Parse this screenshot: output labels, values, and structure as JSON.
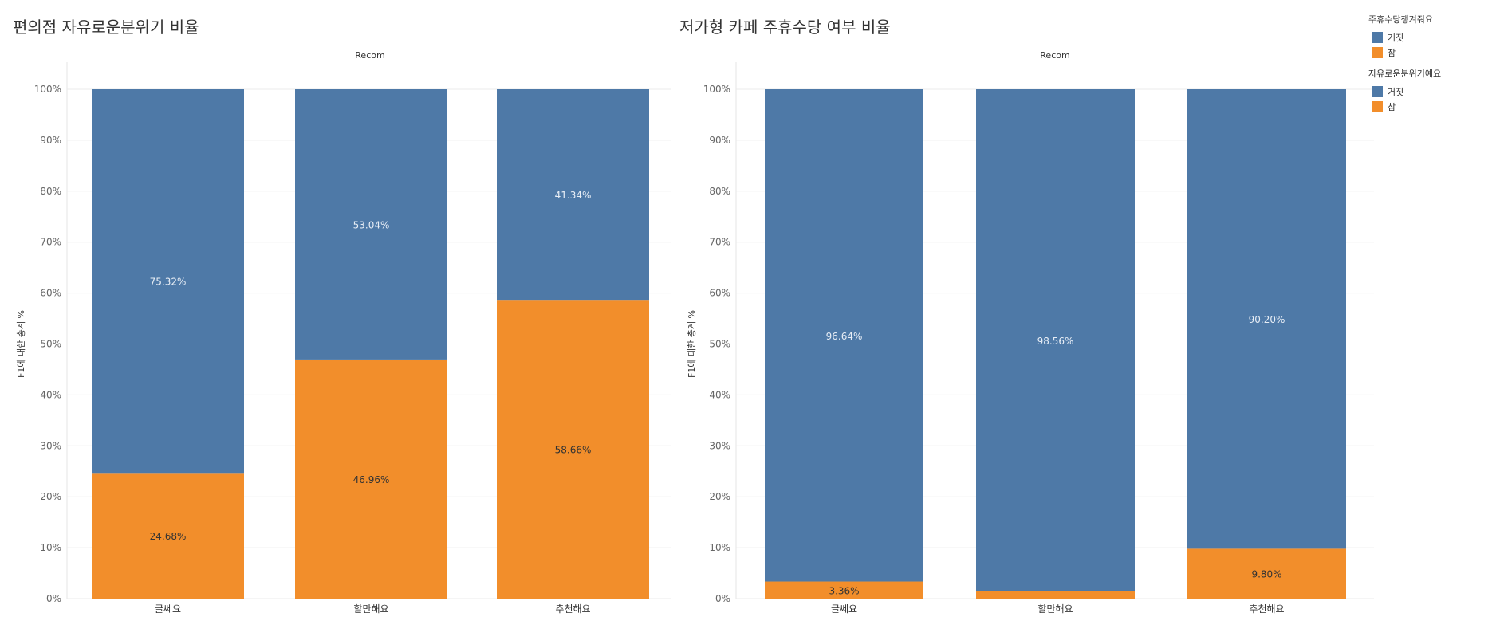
{
  "colors": {
    "blue": "#4e79a7",
    "orange": "#f28e2b"
  },
  "chart_data": [
    {
      "type": "bar",
      "stacked": true,
      "title": "편의점 자유로운분위기 비율",
      "column_header": "Recom",
      "ylabel": "F1에 대한 총계 %",
      "ylim": [
        0,
        100
      ],
      "yticks": [
        "0%",
        "10%",
        "20%",
        "30%",
        "40%",
        "50%",
        "60%",
        "70%",
        "80%",
        "90%",
        "100%"
      ],
      "categories": [
        "글쎄요",
        "할만해요",
        "추천해요"
      ],
      "series": [
        {
          "name": "참",
          "color": "#f28e2b",
          "values": [
            24.68,
            46.96,
            58.66
          ],
          "labels": [
            "24.68%",
            "46.96%",
            "58.66%"
          ]
        },
        {
          "name": "거짓",
          "color": "#4e79a7",
          "values": [
            75.32,
            53.04,
            41.34
          ],
          "labels": [
            "75.32%",
            "53.04%",
            "41.34%"
          ]
        }
      ]
    },
    {
      "type": "bar",
      "stacked": true,
      "title": "저가형 카페 주휴수당 여부 비율",
      "column_header": "Recom",
      "ylabel": "F1에 대한 총계 %",
      "ylim": [
        0,
        100
      ],
      "yticks": [
        "0%",
        "10%",
        "20%",
        "30%",
        "40%",
        "50%",
        "60%",
        "70%",
        "80%",
        "90%",
        "100%"
      ],
      "categories": [
        "글쎄요",
        "할만해요",
        "추천해요"
      ],
      "series": [
        {
          "name": "참",
          "color": "#f28e2b",
          "values": [
            3.36,
            1.44,
            9.8
          ],
          "labels": [
            "3.36%",
            "",
            "9.80%"
          ]
        },
        {
          "name": "거짓",
          "color": "#4e79a7",
          "values": [
            96.64,
            98.56,
            90.2
          ],
          "labels": [
            "96.64%",
            "98.56%",
            "90.20%"
          ]
        }
      ]
    }
  ],
  "legends": [
    {
      "title": "주휴수당챙겨줘요",
      "items": [
        {
          "label": "거짓",
          "color": "#4e79a7"
        },
        {
          "label": "참",
          "color": "#f28e2b"
        }
      ]
    },
    {
      "title": "자유로운분위기예요",
      "items": [
        {
          "label": "거짓",
          "color": "#4e79a7"
        },
        {
          "label": "참",
          "color": "#f28e2b"
        }
      ]
    }
  ]
}
